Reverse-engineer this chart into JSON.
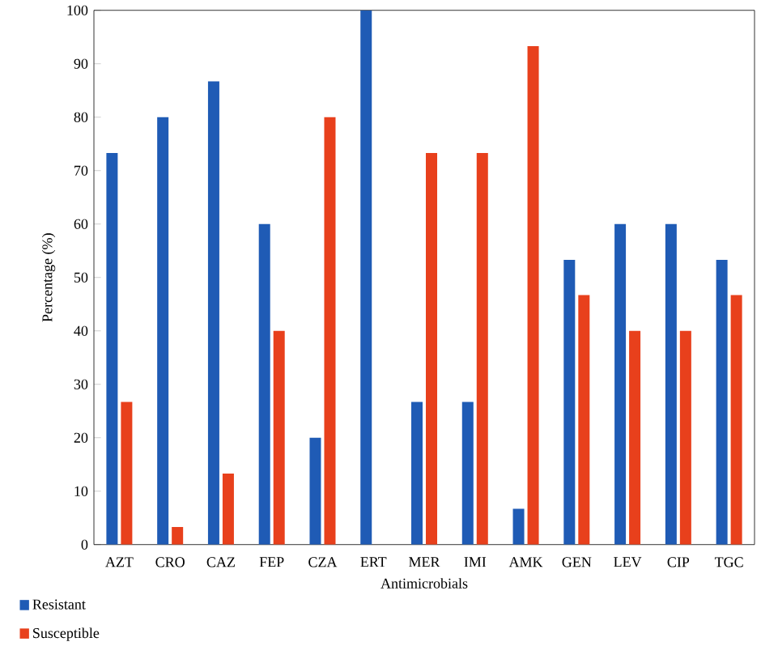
{
  "chart_data": {
    "type": "bar",
    "xlabel": "Antimicrobials",
    "ylabel": "Percentage (%)",
    "categories": [
      "AZT",
      "CRO",
      "CAZ",
      "FEP",
      "CZA",
      "ERT",
      "MER",
      "IMI",
      "AMK",
      "GEN",
      "LEV",
      "CIP",
      "TGC"
    ],
    "series": [
      {
        "name": "Resistant",
        "color": "#1f5bb5",
        "values": [
          73.3,
          80,
          86.7,
          60,
          20,
          100,
          26.7,
          26.7,
          6.7,
          53.3,
          60,
          60,
          53.3
        ]
      },
      {
        "name": "Susceptible",
        "color": "#e8401c",
        "values": [
          26.7,
          3.3,
          13.3,
          40,
          80,
          0,
          73.3,
          73.3,
          93.3,
          46.7,
          40,
          40,
          46.7
        ]
      }
    ],
    "ylim": [
      0,
      100
    ],
    "yticks": [
      0,
      10,
      20,
      30,
      40,
      50,
      60,
      70,
      80,
      90,
      100
    ],
    "grid": false,
    "legend": "bottom left"
  }
}
